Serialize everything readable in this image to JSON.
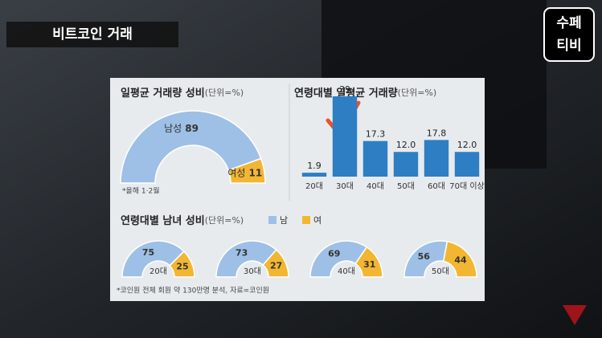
{
  "header": {
    "caption": "비트코인 거래",
    "logo": [
      "수페",
      "티비"
    ]
  },
  "chart_data": [
    {
      "type": "halfpie",
      "title": "일평균 거래량 성비",
      "unit": "(단위=%)",
      "categories": [
        "남성",
        "여성"
      ],
      "values": [
        89,
        11
      ],
      "colors": [
        "#9ec0e6",
        "#f2b632"
      ],
      "note": "*올해 1·2월"
    },
    {
      "type": "bar",
      "title": "연령대별 일평균 거래량",
      "unit": "(단위=%)",
      "categories": [
        "20대",
        "30대",
        "40대",
        "50대",
        "60대",
        "70대 이상"
      ],
      "values": [
        1.9,
        39,
        17.3,
        12,
        17.8,
        12
      ],
      "value_labels": [
        "1.9",
        "39",
        "17.3",
        "12.0",
        "17.8",
        "12.0"
      ],
      "color": "#2e7ec4"
    },
    {
      "type": "halfpie-group",
      "title": "연령대별 남녀 성비",
      "unit": "(단위=%)",
      "categories": [
        "20대",
        "30대",
        "40대",
        "50대"
      ],
      "series": [
        {
          "name": "남",
          "color": "#9ec0e6",
          "values": [
            75,
            73,
            69,
            56
          ]
        },
        {
          "name": "여",
          "color": "#f2b632",
          "values": [
            25,
            27,
            31,
            44
          ]
        }
      ]
    }
  ],
  "footer": "*코인원 전체 회원 약 130만명 분석, 자료=코인원"
}
